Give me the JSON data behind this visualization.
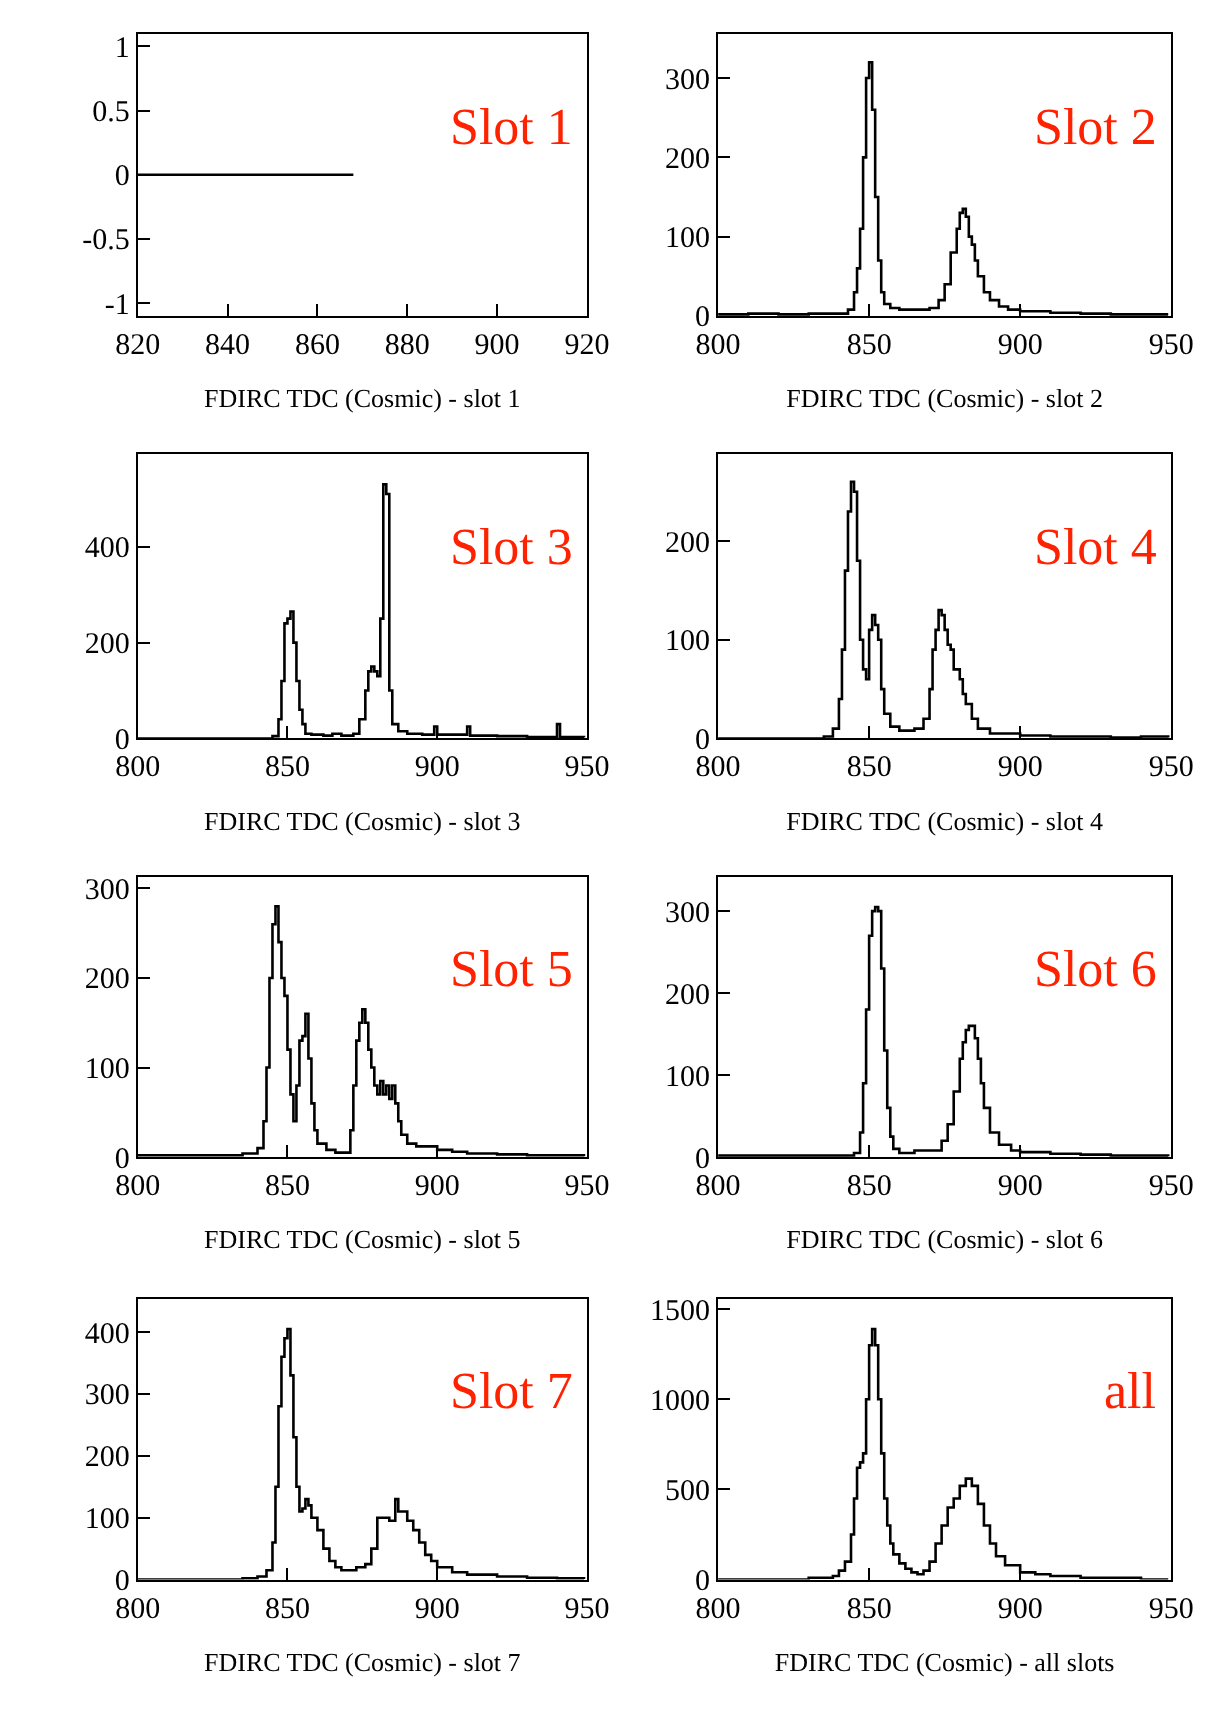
{
  "chart_data": [
    {
      "type": "step",
      "xlabel": "FDIRC TDC (Cosmic) - slot 1",
      "annotations": [
        "Slot 1"
      ],
      "color": "#000000",
      "xlim": [
        820,
        920
      ],
      "xticks": [
        820,
        840,
        860,
        880,
        900,
        920
      ],
      "ylim": [
        -1.1,
        1.1
      ],
      "yticks": [
        -1,
        -0.5,
        0,
        0.5,
        1
      ],
      "x": [
        820,
        868
      ],
      "values": [
        0,
        0
      ]
    },
    {
      "type": "step",
      "xlabel": "FDIRC TDC (Cosmic) - slot 2",
      "annotations": [
        "Slot 2"
      ],
      "color": "#000000",
      "xlim": [
        800,
        950
      ],
      "xticks": [
        800,
        850,
        900,
        950
      ],
      "ylim": [
        0,
        356
      ],
      "yticks": [
        0,
        100,
        200,
        300
      ],
      "x": [
        800,
        810,
        820,
        830,
        840,
        843,
        845,
        846,
        847,
        848,
        849,
        850,
        851,
        852,
        853,
        854,
        855,
        857,
        860,
        865,
        870,
        873,
        875,
        877,
        879,
        880,
        881,
        882,
        883,
        884,
        885,
        886,
        888,
        890,
        893,
        896,
        900,
        910,
        920,
        930,
        940,
        949
      ],
      "values": [
        2,
        3,
        2,
        3,
        3,
        8,
        30,
        60,
        110,
        200,
        300,
        320,
        260,
        150,
        70,
        30,
        15,
        10,
        8,
        8,
        10,
        20,
        40,
        80,
        110,
        130,
        135,
        125,
        100,
        90,
        70,
        50,
        30,
        20,
        12,
        8,
        6,
        4,
        3,
        2,
        2,
        2
      ]
    },
    {
      "type": "step",
      "xlabel": "FDIRC TDC (Cosmic) - slot 3",
      "annotations": [
        "Slot 3"
      ],
      "color": "#000000",
      "xlim": [
        800,
        950
      ],
      "xticks": [
        800,
        850,
        900,
        950
      ],
      "ylim": [
        0,
        593
      ],
      "yticks": [
        0,
        200,
        400
      ],
      "x": [
        800,
        840,
        845,
        847,
        848,
        849,
        850,
        851,
        852,
        853,
        854,
        855,
        856,
        858,
        862,
        865,
        868,
        872,
        874,
        876,
        877,
        878,
        879,
        880,
        881,
        882,
        883,
        884,
        885,
        887,
        890,
        895,
        899,
        900,
        905,
        910,
        911,
        920,
        930,
        940,
        941,
        949
      ],
      "values": [
        0,
        0,
        5,
        40,
        120,
        240,
        250,
        265,
        200,
        120,
        60,
        30,
        10,
        8,
        6,
        10,
        6,
        10,
        40,
        100,
        140,
        150,
        140,
        130,
        250,
        530,
        510,
        100,
        30,
        15,
        10,
        8,
        25,
        8,
        8,
        25,
        6,
        5,
        3,
        30,
        3,
        2
      ]
    },
    {
      "type": "step",
      "xlabel": "FDIRC TDC (Cosmic) - slot 4",
      "annotations": [
        "Slot 4"
      ],
      "color": "#000000",
      "xlim": [
        800,
        950
      ],
      "xticks": [
        800,
        850,
        900,
        950
      ],
      "ylim": [
        0,
        288
      ],
      "yticks": [
        0,
        100,
        200
      ],
      "x": [
        800,
        835,
        838,
        840,
        841,
        842,
        843,
        844,
        845,
        846,
        847,
        848,
        849,
        850,
        851,
        852,
        853,
        854,
        855,
        857,
        860,
        865,
        868,
        870,
        871,
        872,
        873,
        874,
        875,
        876,
        877,
        878,
        879,
        880,
        881,
        882,
        884,
        886,
        890,
        900,
        910,
        920,
        930,
        940,
        949
      ],
      "values": [
        0,
        2,
        10,
        40,
        90,
        170,
        230,
        260,
        250,
        180,
        100,
        70,
        60,
        110,
        125,
        115,
        100,
        50,
        25,
        12,
        8,
        10,
        20,
        50,
        90,
        110,
        130,
        125,
        110,
        95,
        90,
        70,
        70,
        60,
        45,
        35,
        20,
        10,
        5,
        3,
        2,
        2,
        1,
        2,
        1
      ]
    },
    {
      "type": "step",
      "xlabel": "FDIRC TDC (Cosmic) - slot 5",
      "annotations": [
        "Slot 5"
      ],
      "color": "#000000",
      "xlim": [
        800,
        950
      ],
      "xticks": [
        800,
        850,
        900,
        950
      ],
      "ylim": [
        0,
        313
      ],
      "yticks": [
        0,
        100,
        200,
        300
      ],
      "x": [
        800,
        820,
        835,
        840,
        842,
        843,
        844,
        845,
        846,
        847,
        848,
        849,
        850,
        851,
        852,
        853,
        854,
        855,
        856,
        857,
        858,
        859,
        860,
        863,
        866,
        869,
        871,
        872,
        873,
        874,
        875,
        876,
        877,
        878,
        879,
        880,
        881,
        882,
        883,
        884,
        885,
        886,
        887,
        888,
        890,
        893,
        897,
        900,
        905,
        910,
        920,
        930,
        940,
        949
      ],
      "values": [
        2,
        2,
        4,
        10,
        40,
        100,
        200,
        260,
        280,
        240,
        200,
        180,
        120,
        70,
        40,
        80,
        130,
        135,
        160,
        110,
        60,
        30,
        15,
        8,
        5,
        5,
        30,
        80,
        130,
        150,
        165,
        150,
        120,
        100,
        80,
        70,
        85,
        70,
        80,
        65,
        80,
        60,
        40,
        25,
        15,
        12,
        12,
        8,
        6,
        4,
        3,
        2,
        2,
        1
      ]
    },
    {
      "type": "step",
      "xlabel": "FDIRC TDC (Cosmic) - slot 6",
      "annotations": [
        "Slot 6"
      ],
      "color": "#000000",
      "xlim": [
        800,
        950
      ],
      "xticks": [
        800,
        850,
        900,
        950
      ],
      "ylim": [
        0,
        342
      ],
      "yticks": [
        0,
        100,
        200,
        300
      ],
      "x": [
        800,
        820,
        840,
        845,
        847,
        848,
        849,
        850,
        851,
        852,
        853,
        854,
        855,
        856,
        857,
        858,
        860,
        865,
        870,
        874,
        876,
        878,
        880,
        881,
        882,
        883,
        884,
        885,
        886,
        887,
        888,
        890,
        893,
        897,
        900,
        910,
        920,
        930,
        940,
        949
      ],
      "values": [
        2,
        2,
        2,
        5,
        30,
        90,
        180,
        270,
        300,
        305,
        300,
        230,
        130,
        60,
        25,
        10,
        5,
        8,
        8,
        20,
        40,
        80,
        120,
        140,
        155,
        160,
        160,
        145,
        120,
        90,
        60,
        30,
        15,
        8,
        6,
        4,
        3,
        2,
        2,
        1
      ]
    },
    {
      "type": "step",
      "xlabel": "FDIRC TDC (Cosmic) - slot 7",
      "annotations": [
        "Slot 7"
      ],
      "color": "#000000",
      "xlim": [
        800,
        950
      ],
      "xticks": [
        800,
        850,
        900,
        950
      ],
      "ylim": [
        0,
        453
      ],
      "yticks": [
        0,
        100,
        200,
        300,
        400
      ],
      "x": [
        800,
        835,
        840,
        843,
        845,
        846,
        847,
        848,
        849,
        850,
        851,
        852,
        853,
        854,
        855,
        856,
        857,
        858,
        860,
        862,
        864,
        866,
        868,
        870,
        873,
        876,
        878,
        880,
        882,
        884,
        886,
        887,
        888,
        890,
        892,
        894,
        896,
        898,
        900,
        905,
        910,
        920,
        930,
        940,
        949
      ],
      "values": [
        0,
        2,
        5,
        15,
        60,
        150,
        280,
        360,
        390,
        405,
        330,
        230,
        150,
        110,
        115,
        130,
        120,
        100,
        80,
        50,
        30,
        20,
        15,
        15,
        20,
        25,
        50,
        100,
        100,
        95,
        130,
        110,
        110,
        95,
        80,
        60,
        40,
        30,
        20,
        12,
        8,
        5,
        3,
        2,
        1
      ]
    },
    {
      "type": "step",
      "xlabel": "FDIRC TDC (Cosmic) - all slots",
      "annotations": [
        "all"
      ],
      "color": "#000000",
      "xlim": [
        800,
        950
      ],
      "xticks": [
        800,
        850,
        900,
        950
      ],
      "ylim": [
        0,
        1555
      ],
      "yticks": [
        0,
        500,
        1000,
        1500
      ],
      "x": [
        800,
        830,
        835,
        838,
        840,
        842,
        844,
        845,
        846,
        847,
        848,
        849,
        850,
        851,
        852,
        853,
        854,
        855,
        856,
        857,
        858,
        860,
        862,
        864,
        866,
        868,
        870,
        872,
        874,
        876,
        878,
        880,
        882,
        884,
        886,
        888,
        890,
        892,
        895,
        900,
        905,
        910,
        920,
        930,
        940,
        949
      ],
      "values": [
        0,
        10,
        10,
        20,
        50,
        100,
        250,
        450,
        620,
        650,
        700,
        1000,
        1300,
        1390,
        1300,
        1000,
        700,
        450,
        300,
        200,
        140,
        90,
        60,
        40,
        30,
        50,
        100,
        200,
        300,
        400,
        450,
        520,
        560,
        520,
        420,
        300,
        200,
        130,
        80,
        40,
        30,
        20,
        10,
        10,
        0,
        0
      ]
    }
  ]
}
